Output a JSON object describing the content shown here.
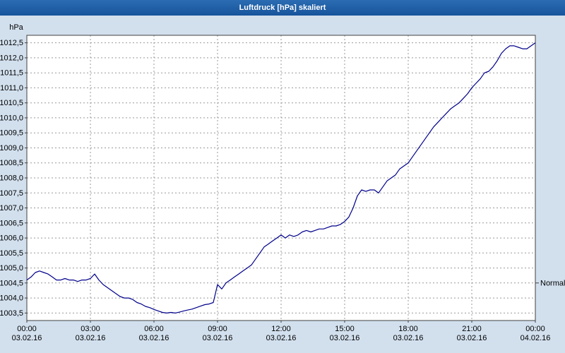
{
  "window": {
    "title": "Luftdruck [hPa] skaliert"
  },
  "chart_data": {
    "type": "line",
    "title": "Luftdruck [hPa] skaliert",
    "xlabel": "",
    "ylabel": "hPa",
    "decimal_separator": ",",
    "grid": true,
    "xlim": [
      0,
      24
    ],
    "ylim": [
      1003.25,
      1012.75
    ],
    "yticks": [
      1003.5,
      1004.0,
      1004.5,
      1005.0,
      1005.5,
      1006.0,
      1006.5,
      1007.0,
      1007.5,
      1008.0,
      1008.5,
      1009.0,
      1009.5,
      1010.0,
      1010.5,
      1011.0,
      1011.5,
      1012.0,
      1012.5
    ],
    "xtick_step_hours": 3,
    "xticks": [
      {
        "time": "00:00",
        "date": "03.02.16"
      },
      {
        "time": "03:00",
        "date": "03.02.16"
      },
      {
        "time": "06:00",
        "date": "03.02.16"
      },
      {
        "time": "09:00",
        "date": "03.02.16"
      },
      {
        "time": "12:00",
        "date": "03.02.16"
      },
      {
        "time": "15:00",
        "date": "03.02.16"
      },
      {
        "time": "18:00",
        "date": "03.02.16"
      },
      {
        "time": "21:00",
        "date": "03.02.16"
      },
      {
        "time": "00:00",
        "date": "04.02.16"
      }
    ],
    "annotations": [
      {
        "label": "Normal",
        "y": 1004.5
      }
    ],
    "series": [
      {
        "name": "Luftdruck",
        "color": "#00008b",
        "x_start": 0,
        "x_step": 0.2,
        "y": [
          1004.6,
          1004.7,
          1004.85,
          1004.9,
          1004.85,
          1004.8,
          1004.7,
          1004.6,
          1004.6,
          1004.65,
          1004.6,
          1004.6,
          1004.55,
          1004.6,
          1004.6,
          1004.65,
          1004.8,
          1004.6,
          1004.45,
          1004.35,
          1004.25,
          1004.15,
          1004.05,
          1004.0,
          1004.0,
          1003.95,
          1003.85,
          1003.8,
          1003.72,
          1003.68,
          1003.62,
          1003.57,
          1003.52,
          1003.5,
          1003.52,
          1003.5,
          1003.53,
          1003.57,
          1003.6,
          1003.63,
          1003.68,
          1003.73,
          1003.78,
          1003.8,
          1003.85,
          1004.45,
          1004.3,
          1004.5,
          1004.6,
          1004.7,
          1004.8,
          1004.9,
          1005.0,
          1005.1,
          1005.3,
          1005.5,
          1005.7,
          1005.8,
          1005.9,
          1006.0,
          1006.1,
          1006.0,
          1006.1,
          1006.05,
          1006.1,
          1006.2,
          1006.25,
          1006.2,
          1006.25,
          1006.3,
          1006.3,
          1006.35,
          1006.4,
          1006.4,
          1006.45,
          1006.55,
          1006.7,
          1007.0,
          1007.4,
          1007.6,
          1007.55,
          1007.6,
          1007.6,
          1007.5,
          1007.7,
          1007.9,
          1008.0,
          1008.1,
          1008.3,
          1008.4,
          1008.5,
          1008.7,
          1008.9,
          1009.1,
          1009.3,
          1009.5,
          1009.7,
          1009.85,
          1010.0,
          1010.15,
          1010.3,
          1010.4,
          1010.5,
          1010.65,
          1010.8,
          1011.0,
          1011.15,
          1011.3,
          1011.5,
          1011.55,
          1011.7,
          1011.9,
          1012.15,
          1012.3,
          1012.4,
          1012.4,
          1012.35,
          1012.3,
          1012.3,
          1012.4,
          1012.5
        ]
      }
    ],
    "colors": {
      "background": "#d2e0ee",
      "plot_bg": "#ffffff",
      "grid": "#999999",
      "border": "#404040",
      "titlebar_top": "#2b6cb2",
      "titlebar_bottom": "#17549c",
      "title_text": "#ffffff",
      "line": "#00008b"
    }
  }
}
